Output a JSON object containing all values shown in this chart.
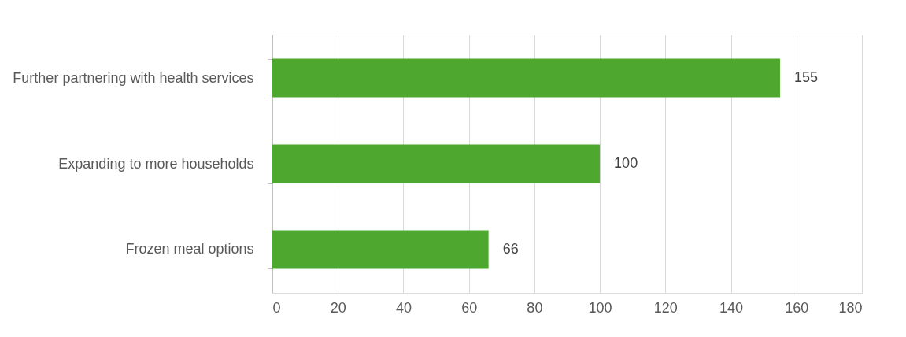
{
  "chart_data": {
    "type": "bar",
    "orientation": "horizontal",
    "categories": [
      "Further partnering with health services",
      "Expanding to more households",
      "Frozen meal options"
    ],
    "values": [
      155,
      100,
      66
    ],
    "color": "#4ea72e",
    "xlim": [
      0,
      180
    ],
    "xticks": [
      0,
      20,
      40,
      60,
      80,
      100,
      120,
      140,
      160,
      180
    ],
    "grid": "x",
    "data_labels": true
  }
}
